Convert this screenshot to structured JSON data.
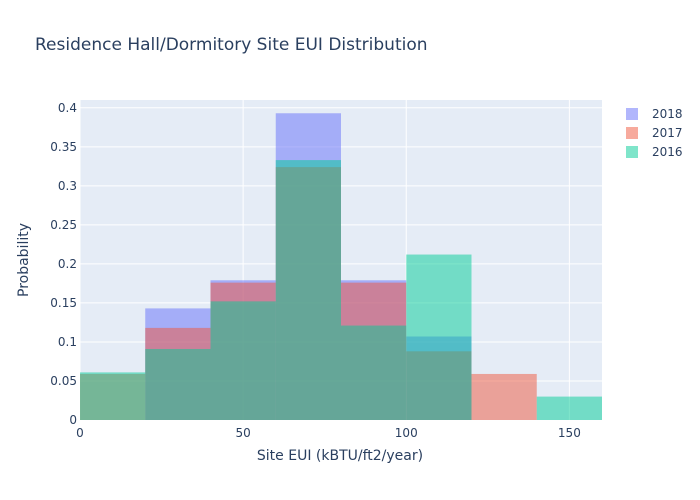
{
  "chart_data": {
    "type": "histogram",
    "title": "Residence Hall/Dormitory Site EUI Distribution",
    "xlabel": "Site EUI (kBTU/ft2/year)",
    "ylabel": "Probability",
    "xlim": [
      0,
      160
    ],
    "ylim": [
      0,
      0.41
    ],
    "xticks": [
      0,
      50,
      100,
      150
    ],
    "xtick_labels": [
      "0",
      "50",
      "100",
      "150"
    ],
    "yticks": [
      0,
      0.05,
      0.1,
      0.15,
      0.2,
      0.25,
      0.3,
      0.35,
      0.4
    ],
    "ytick_labels": [
      "0",
      "0.05",
      "0.1",
      "0.15",
      "0.2",
      "0.25",
      "0.3",
      "0.35",
      "0.4"
    ],
    "bin_edges": [
      0,
      20,
      40,
      60,
      80,
      100,
      120,
      140,
      160
    ],
    "barmode": "overlay",
    "grid": true,
    "legend_position": "top-right",
    "series": [
      {
        "name": "2018",
        "color": "#636efa",
        "values": [
          0.0,
          0.143,
          0.179,
          0.393,
          0.179,
          0.107,
          0.0,
          0.0
        ]
      },
      {
        "name": "2017",
        "color": "#ef553b",
        "values": [
          0.059,
          0.118,
          0.176,
          0.324,
          0.176,
          0.088,
          0.059,
          0.0
        ]
      },
      {
        "name": "2016",
        "color": "#00cc96",
        "values": [
          0.061,
          0.091,
          0.152,
          0.333,
          0.121,
          0.212,
          0.0,
          0.03
        ]
      }
    ]
  }
}
